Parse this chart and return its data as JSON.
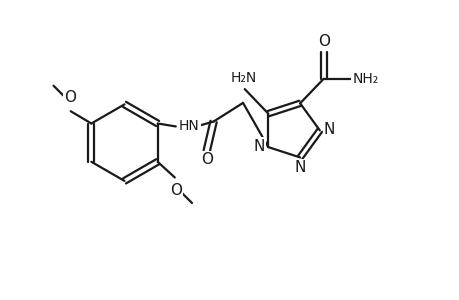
{
  "bg_color": "#ffffff",
  "line_color": "#1a1a1a",
  "line_width": 1.6,
  "font_size": 10,
  "figsize": [
    4.6,
    3.0
  ],
  "dpi": 100,
  "xlim": [
    0,
    9.2
  ],
  "ylim": [
    0,
    6.0
  ]
}
